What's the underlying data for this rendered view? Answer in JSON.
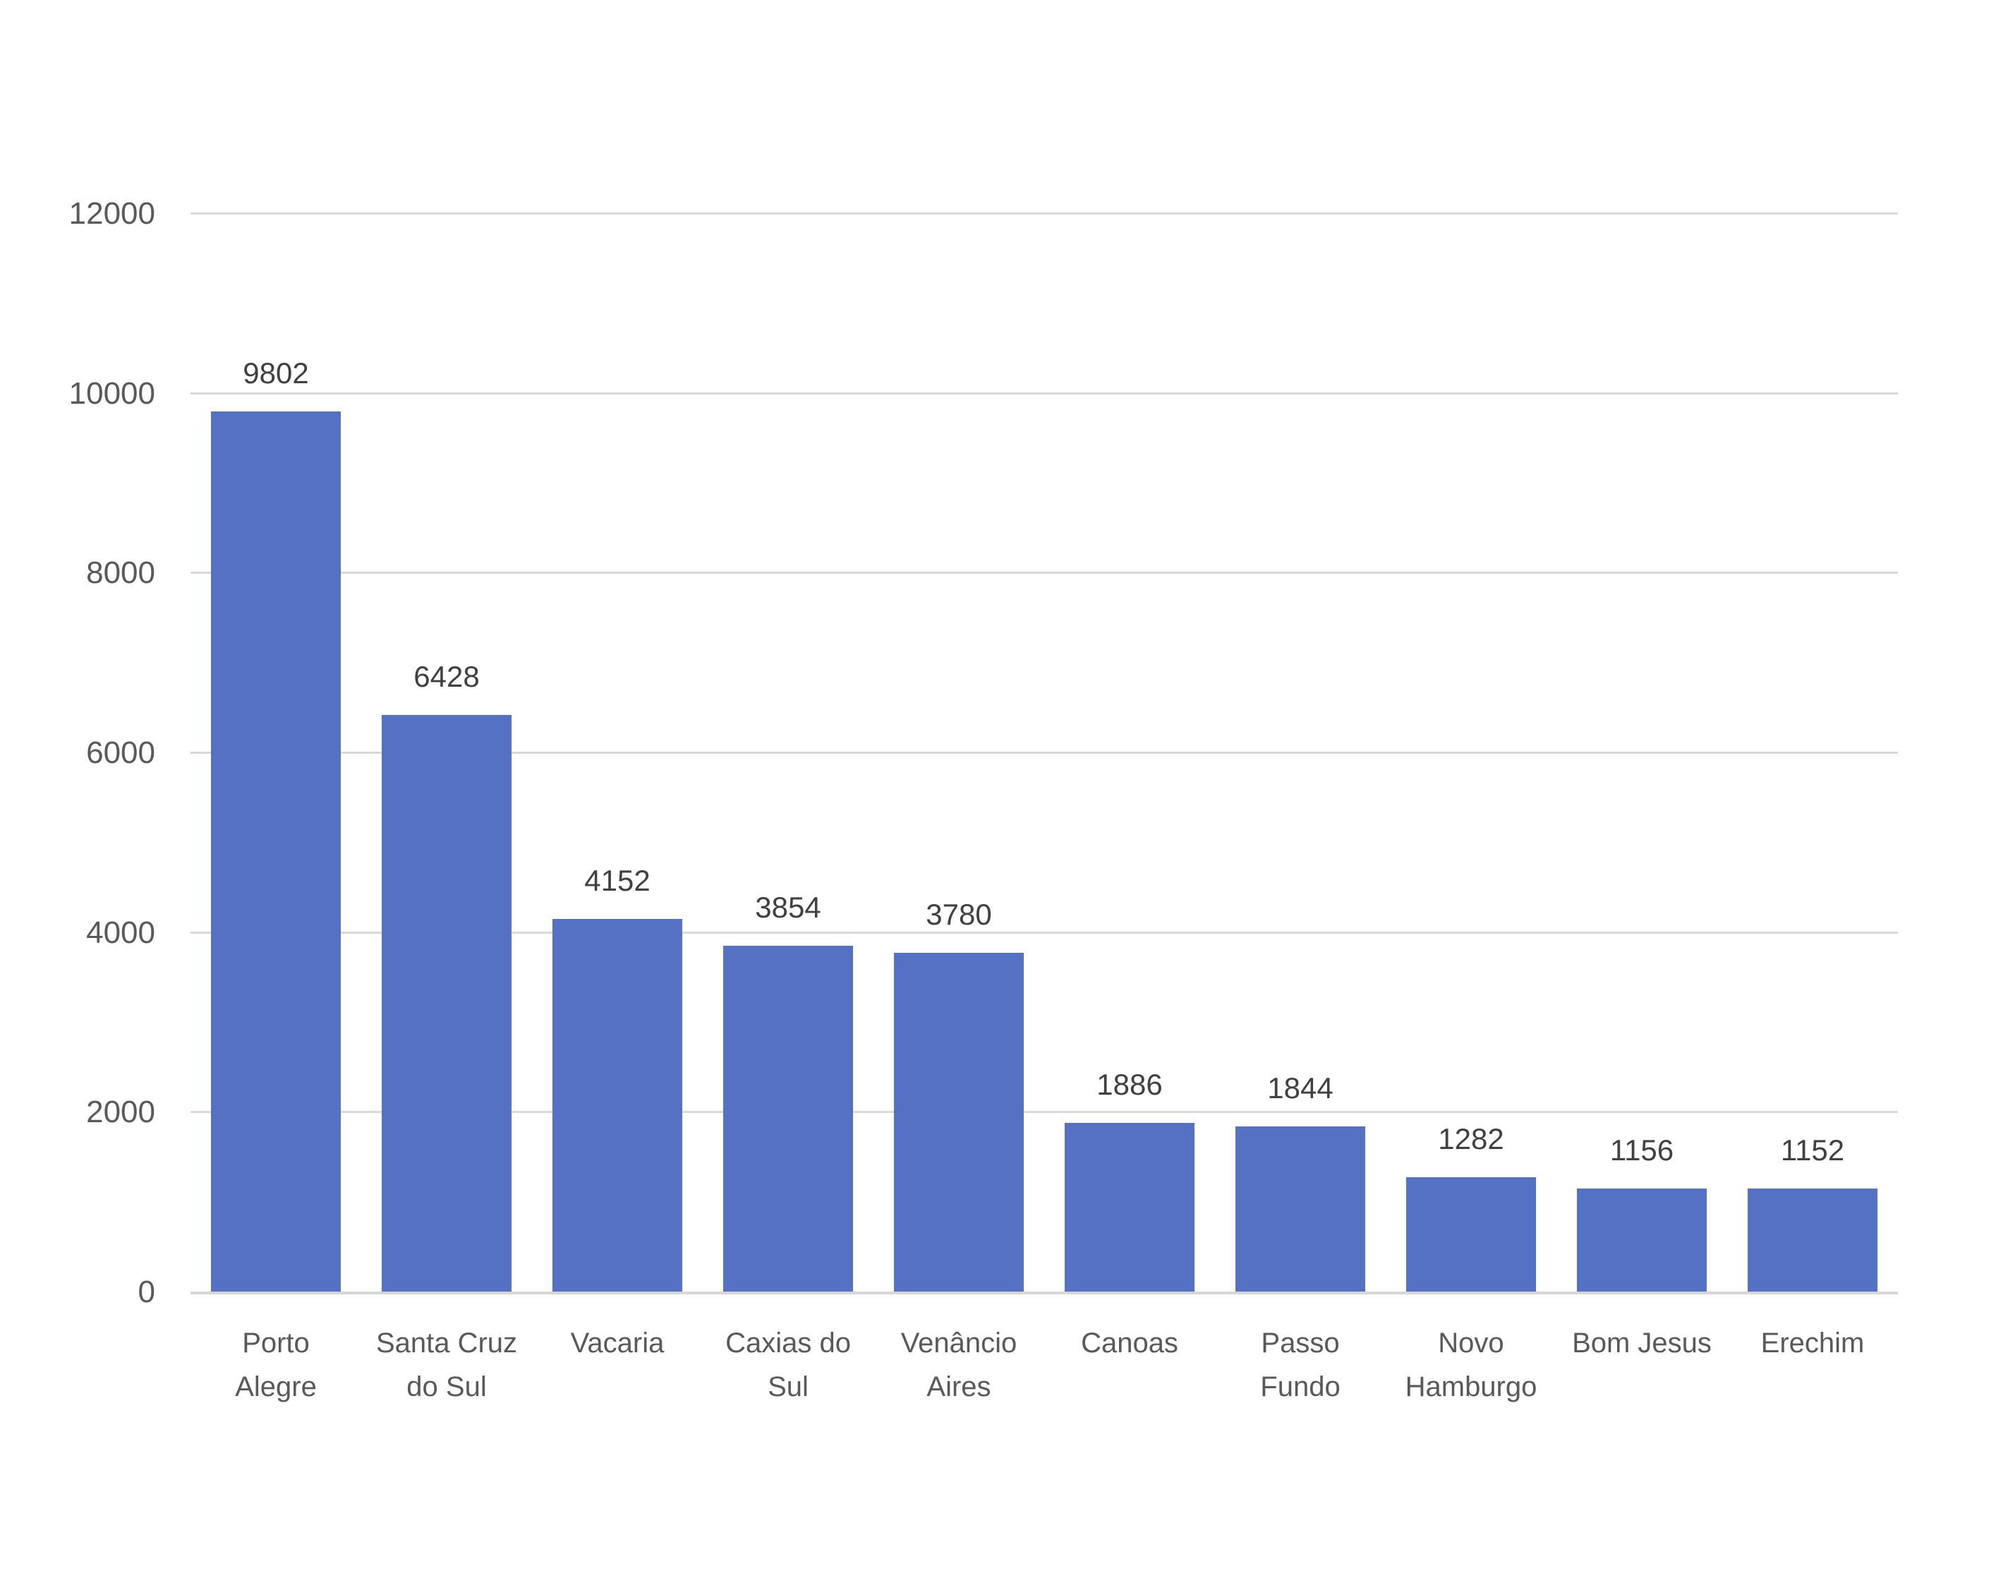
{
  "chart_data": {
    "type": "bar",
    "categories": [
      "Porto Alegre",
      "Santa Cruz do Sul",
      "Vacaria",
      "Caxias do Sul",
      "Venâncio Aires",
      "Canoas",
      "Passo Fundo",
      "Novo Hamburgo",
      "Bom Jesus",
      "Erechim"
    ],
    "category_label_lines": [
      [
        "Porto",
        "Alegre"
      ],
      [
        "Santa Cruz",
        "do Sul"
      ],
      [
        "Vacaria"
      ],
      [
        "Caxias do",
        "Sul"
      ],
      [
        "Venâncio",
        "Aires"
      ],
      [
        "Canoas"
      ],
      [
        "Passo",
        "Fundo"
      ],
      [
        "Novo",
        "Hamburgo"
      ],
      [
        "Bom Jesus"
      ],
      [
        "Erechim"
      ]
    ],
    "values": [
      9802,
      6428,
      4152,
      3854,
      3780,
      1886,
      1844,
      1282,
      1156,
      1152
    ],
    "data_labels": [
      9802,
      6428,
      4152,
      3854,
      3780,
      1886,
      1844,
      1282,
      1156,
      1152
    ],
    "data_label_position": "outside-end",
    "y_ticks": [
      0,
      2000,
      4000,
      6000,
      8000,
      10000,
      12000
    ],
    "ylim": [
      0,
      12000
    ],
    "xlabel": "",
    "ylabel": "",
    "grid": "horizontal",
    "legend": "none",
    "colors": {
      "bar": "#5471C3",
      "gridline": "#D9D9D9",
      "axis_line": "#D6D6D6",
      "tick_label": "#595959",
      "category_label": "#595959",
      "data_label": "#404040",
      "background": "#FFFFFF"
    }
  }
}
